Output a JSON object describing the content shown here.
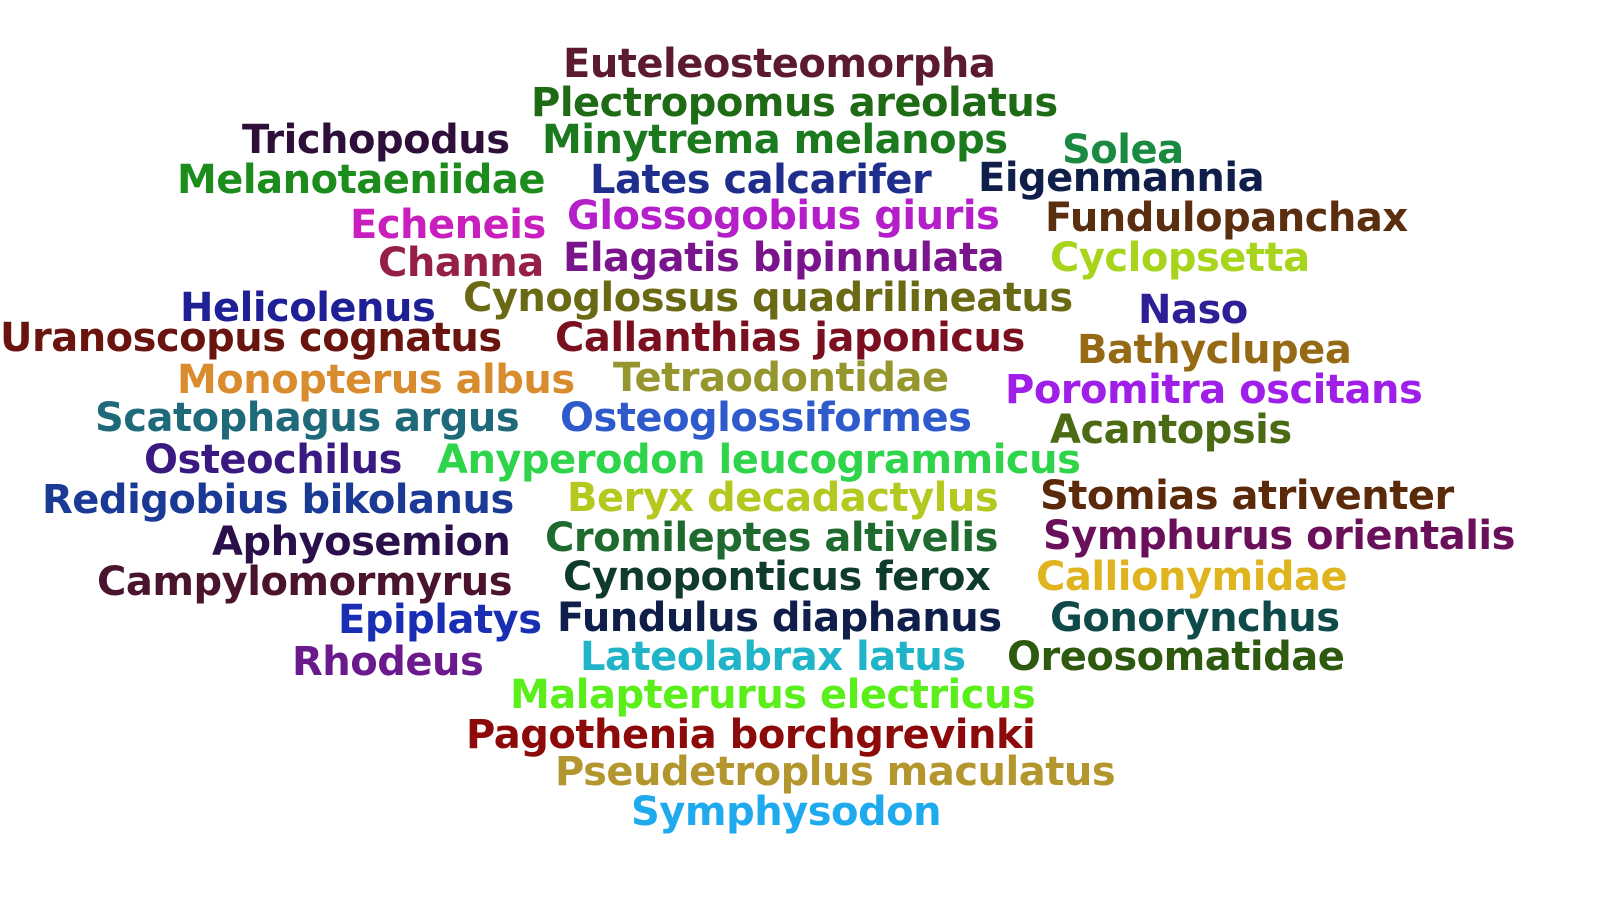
{
  "words": [
    {
      "text": "Euteleosteomorpha",
      "color": "#5c1a2e"
    },
    {
      "text": "Plectropomus areolatus",
      "color": "#1f6a14"
    },
    {
      "text": "Trichopodus",
      "color": "#2e0f3a"
    },
    {
      "text": "Minytrema melanops",
      "color": "#1c7a1e"
    },
    {
      "text": "Solea",
      "color": "#1a8a40"
    },
    {
      "text": "Melanotaeniidae",
      "color": "#1c8c1c"
    },
    {
      "text": "Lates calcarifer",
      "color": "#1f2e8c"
    },
    {
      "text": "Eigenmannia",
      "color": "#0f1f4a"
    },
    {
      "text": "Echeneis",
      "color": "#c91fbf"
    },
    {
      "text": "Glossogobius giuris",
      "color": "#b41fc9"
    },
    {
      "text": "Fundulopanchax",
      "color": "#5a2e0f"
    },
    {
      "text": "Channa",
      "color": "#961f4a"
    },
    {
      "text": "Elagatis bipinnulata",
      "color": "#7a148c"
    },
    {
      "text": "Cyclopsetta",
      "color": "#a8d41c"
    },
    {
      "text": "Helicolenus",
      "color": "#1f1f96"
    },
    {
      "text": "Cynoglossus quadrilineatus",
      "color": "#6a6a14"
    },
    {
      "text": "Naso",
      "color": "#2e1f96"
    },
    {
      "text": "Uranoscopus cognatus",
      "color": "#6a140f"
    },
    {
      "text": "Callanthias japonicus",
      "color": "#7a0f1f"
    },
    {
      "text": "Bathyclupea",
      "color": "#966a14"
    },
    {
      "text": "Monopterus albus",
      "color": "#d98c2e"
    },
    {
      "text": "Tetraodontidae",
      "color": "#96962e"
    },
    {
      "text": "Poromitra oscitans",
      "color": "#a01fe8"
    },
    {
      "text": "Scatophagus argus",
      "color": "#1f6a7a"
    },
    {
      "text": "Osteoglossiformes",
      "color": "#2e5acc"
    },
    {
      "text": "Acantopsis",
      "color": "#4a6a14"
    },
    {
      "text": "Osteochilus",
      "color": "#3a1a80"
    },
    {
      "text": "Anyperodon leucogrammicus",
      "color": "#2ed44a"
    },
    {
      "text": "Redigobius bikolanus",
      "color": "#1a3a96"
    },
    {
      "text": "Beryx decadactylus",
      "color": "#b4c81f"
    },
    {
      "text": "Stomias atriventer",
      "color": "#5a2a0a"
    },
    {
      "text": "Aphyosemion",
      "color": "#2a0f4a"
    },
    {
      "text": "Cromileptes altivelis",
      "color": "#1f6a2e"
    },
    {
      "text": "Symphurus orientalis",
      "color": "#6a0f5a"
    },
    {
      "text": "Campylomormyrus",
      "color": "#4a142e"
    },
    {
      "text": "Cynoponticus ferox",
      "color": "#0f3a2e"
    },
    {
      "text": "Callionymidae",
      "color": "#e0b41f"
    },
    {
      "text": "Epiplatys",
      "color": "#1a2eb4"
    },
    {
      "text": "Fundulus diaphanus",
      "color": "#0f1f4a"
    },
    {
      "text": "Gonorynchus",
      "color": "#0f4a4a"
    },
    {
      "text": "Rhodeus",
      "color": "#6a1a8c"
    },
    {
      "text": "Lateolabrax latus",
      "color": "#1fb4c8"
    },
    {
      "text": "Oreosomatidae",
      "color": "#2e5a0f"
    },
    {
      "text": "Malapterurus electricus",
      "color": "#5aee1a"
    },
    {
      "text": "Pagothenia borchgrevinki",
      "color": "#8c0a0a"
    },
    {
      "text": "Pseudetroplus maculatus",
      "color": "#b4962e"
    },
    {
      "text": "Symphysodon",
      "color": "#1faaee"
    }
  ]
}
